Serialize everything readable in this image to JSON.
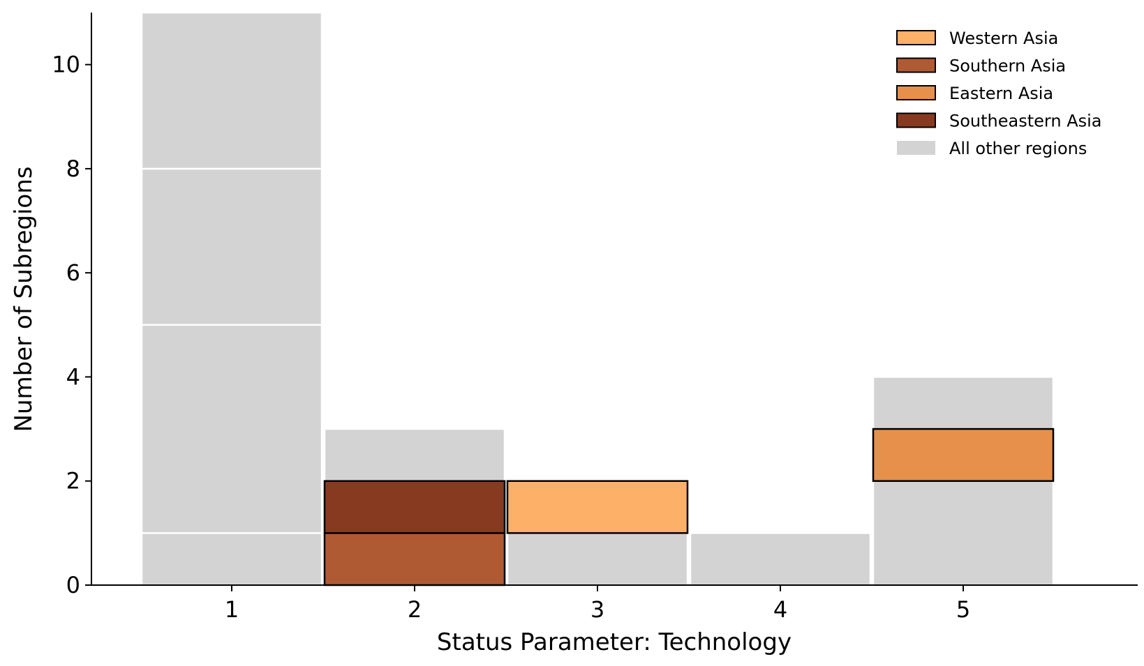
{
  "chart_data": {
    "type": "bar",
    "stacked": true,
    "xlabel": "Status Parameter: Technology",
    "ylabel": "Number of Subregions",
    "categories": [
      "1",
      "2",
      "3",
      "4",
      "5"
    ],
    "ylim": [
      0,
      11
    ],
    "yticks": [
      0,
      2,
      4,
      6,
      8,
      10
    ],
    "grid": false,
    "legend_position": "top-right",
    "series": [
      {
        "name": "Western Asia",
        "color": "#FDB067",
        "segments": [
          {
            "x": "3",
            "y0": 1,
            "y1": 2
          }
        ]
      },
      {
        "name": "Southern Asia",
        "color": "#B05A34",
        "segments": [
          {
            "x": "2",
            "y0": 0,
            "y1": 1
          }
        ]
      },
      {
        "name": "Eastern Asia",
        "color": "#E6904B",
        "segments": [
          {
            "x": "5",
            "y0": 2,
            "y1": 3
          }
        ]
      },
      {
        "name": "Southeastern Asia",
        "color": "#873A20",
        "segments": [
          {
            "x": "2",
            "y0": 1,
            "y1": 2
          }
        ]
      },
      {
        "name": "All other regions",
        "color": "#D3D3D3",
        "segments": [
          {
            "x": "1",
            "y0": 0,
            "y1": 1
          },
          {
            "x": "1",
            "y0": 1,
            "y1": 5
          },
          {
            "x": "1",
            "y0": 5,
            "y1": 8
          },
          {
            "x": "1",
            "y0": 8,
            "y1": 11
          },
          {
            "x": "2",
            "y0": 2,
            "y1": 3
          },
          {
            "x": "3",
            "y0": 0,
            "y1": 1
          },
          {
            "x": "4",
            "y0": 0,
            "y1": 1
          },
          {
            "x": "5",
            "y0": 0,
            "y1": 2
          },
          {
            "x": "5",
            "y0": 3,
            "y1": 4
          }
        ]
      }
    ]
  }
}
